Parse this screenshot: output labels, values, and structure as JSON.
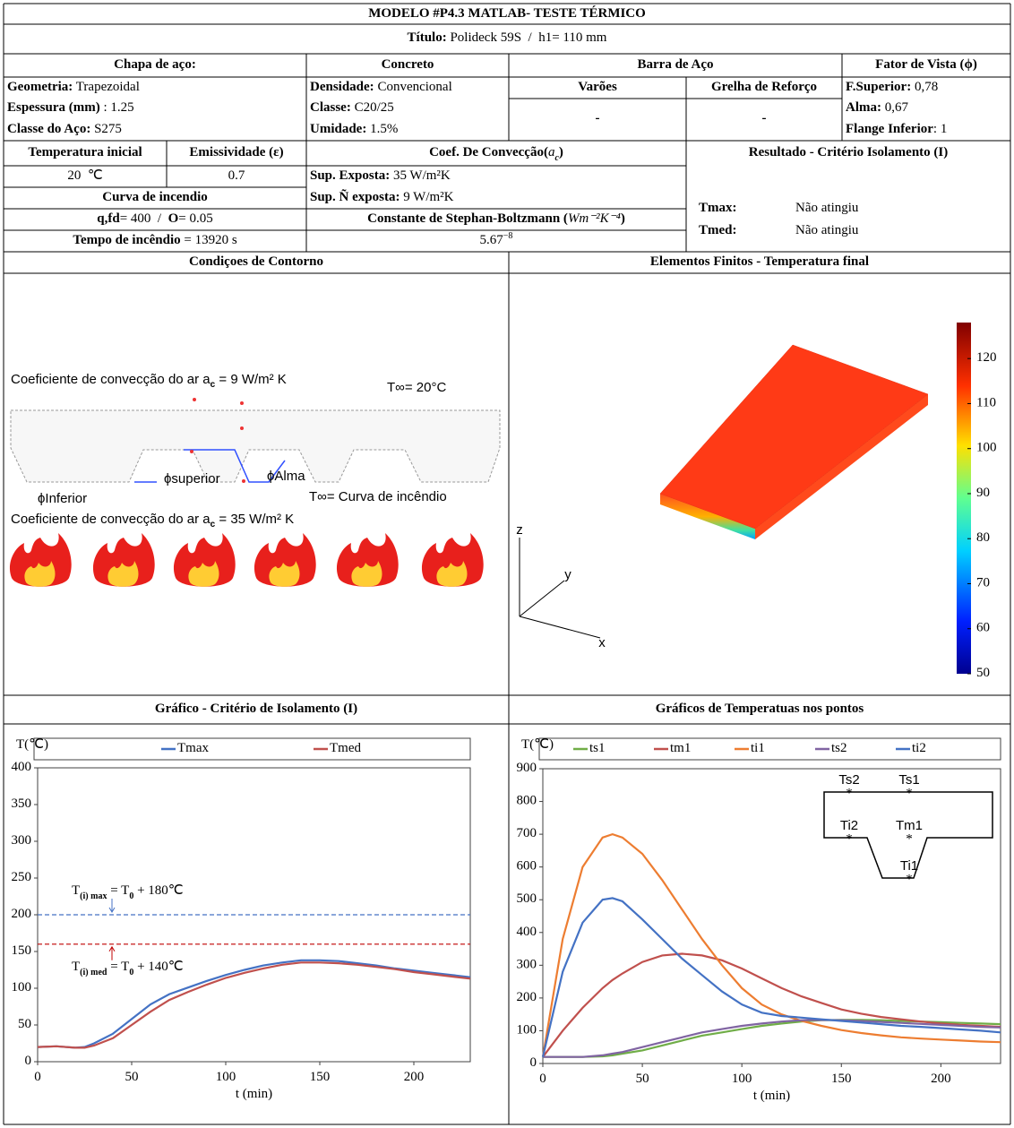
{
  "header": {
    "title": "MODELO #P4.3 MATLAB- TESTE TÉRMICO",
    "subtitle_label": "Título:",
    "subtitle": " Polideck 59S  /  h1= 110 mm"
  },
  "steel": {
    "heading": "Chapa de aço:",
    "rows": [
      {
        "label": "Geometria:",
        "value": " Trapezoidal"
      },
      {
        "label": "Espessura (mm)",
        "value": " : 1.25"
      },
      {
        "label": "Classe do Aço:",
        "value": " S275"
      }
    ]
  },
  "concrete": {
    "heading": "Concreto",
    "rows": [
      {
        "label": "Densidade:",
        "value": " Convencional"
      },
      {
        "label": "Classe:",
        "value": " C20/25"
      },
      {
        "label": "Umidade:",
        "value": " 1.5%"
      }
    ]
  },
  "rebar": {
    "heading": "Barra de Aço",
    "columns": [
      {
        "label": "Varões",
        "value": "-"
      },
      {
        "label": "Grelha de Reforço",
        "value": "-"
      }
    ]
  },
  "view_factor": {
    "heading": "Fator de Vista (ϕ)",
    "rows": [
      {
        "label": "F.Superior:",
        "value": " 0,78"
      },
      {
        "label": "Alma:",
        "value": " 0,67"
      },
      {
        "label": "Flange Inferior",
        "value": ": 1"
      }
    ]
  },
  "initial": {
    "temperature_label": "Temperatura inicial",
    "emissivity_label": "Emissividade (ε)",
    "temperature": "20  ℃",
    "emissivity": "0.7"
  },
  "fire": {
    "heading": "Curva de incendio",
    "q_label": "q,fd",
    "q_value": "= 400  /  ",
    "o_label": "O",
    "o_value": "= 0.05",
    "time_label": "Tempo de incêndio",
    "time_value": " = 13920 s"
  },
  "convection": {
    "heading": "Coef. De Convecção(",
    "symbol": "a",
    "symbol_sub": "c",
    "heading_end": ")",
    "rows": [
      {
        "label": "Sup. Exposta:",
        "value": " 35 W/m²K"
      },
      {
        "label": "Sup. Ñ exposta:",
        "value": " 9 W/m²K"
      }
    ],
    "constant_label": "Constante de Stephan-Boltzmann (",
    "constant_unit": "Wm⁻²K⁻⁴",
    "constant_end": ")",
    "constant_value": "5.67",
    "constant_exp": "−8"
  },
  "result": {
    "heading": "Resultado - Critério Isolamento (I)",
    "rows": [
      {
        "label": "Tmax:",
        "value": "Não atingiu"
      },
      {
        "label": "Tmed:",
        "value": "Não atingiu"
      }
    ]
  },
  "sections": {
    "boundary": "Condiçoes de Contorno",
    "fe": "Elementos Finitos - Temperatura final",
    "insulation": "Gráfico - Critério de Isolamento (I)",
    "points": "Gráficos de Temperatuas nos pontos"
  },
  "boundary_diagram": {
    "top_convection": [
      "Coeficiente de convecção do ar a",
      "c",
      " = 9 W/m² K"
    ],
    "top_temperature": "T∞= 20°C",
    "superior": "ϕsuperior",
    "alma": "ϕAlma",
    "inferior": "ϕInferior",
    "bottom_temperature": "T∞= Curva de incêndio",
    "bottom_convection": [
      "Coeficiente de convecção do ar a",
      "c",
      " = 35 W/m² K"
    ]
  },
  "fe_plot": {
    "axes": [
      "x",
      "y",
      "z"
    ],
    "colorbar": {
      "lim": [
        50,
        128
      ],
      "ticks": [
        50,
        60,
        70,
        80,
        90,
        100,
        110,
        120
      ]
    }
  },
  "chart_data": [
    {
      "type": "line",
      "y_label": "T(℃)",
      "x_label": "t (min)",
      "xlim": [
        0,
        230
      ],
      "xticks": [
        0,
        50,
        100,
        150,
        200
      ],
      "ylim": [
        0,
        400
      ],
      "yticks": [
        0,
        50,
        100,
        150,
        200,
        250,
        300,
        350,
        400
      ],
      "x": [
        0,
        10,
        20,
        25,
        30,
        40,
        50,
        60,
        70,
        80,
        90,
        100,
        110,
        120,
        130,
        140,
        150,
        160,
        170,
        180,
        190,
        200,
        210,
        220,
        230
      ],
      "series": [
        {
          "name": "Tmax",
          "color": "#4472c4",
          "values": [
            20,
            21,
            19,
            20,
            25,
            38,
            58,
            78,
            92,
            101,
            110,
            118,
            125,
            131,
            135,
            138,
            138,
            137,
            134,
            131,
            127,
            124,
            121,
            118,
            115
          ]
        },
        {
          "name": "Tmed",
          "color": "#c0504d",
          "values": [
            20,
            21,
            19,
            19,
            22,
            32,
            50,
            68,
            84,
            95,
            105,
            114,
            121,
            127,
            132,
            135,
            135,
            134,
            132,
            129,
            126,
            122,
            119,
            116,
            113
          ]
        }
      ],
      "reference_lines": [
        {
          "value": 200,
          "color": "#4472c4",
          "label": [
            "T",
            "(i) max",
            " = T",
            "0",
            " + 180℃"
          ]
        },
        {
          "value": 160,
          "color": "#c00000",
          "label": [
            "T",
            "(i) med",
            " = T",
            "0",
            " + 140℃"
          ]
        }
      ]
    },
    {
      "type": "line",
      "y_label": "T(℃)",
      "x_label": "t (min)",
      "xlim": [
        0,
        230
      ],
      "xticks": [
        0,
        50,
        100,
        150,
        200
      ],
      "ylim": [
        0,
        900
      ],
      "yticks": [
        0,
        100,
        200,
        300,
        400,
        500,
        600,
        700,
        800,
        900
      ],
      "x": [
        0,
        5,
        10,
        20,
        30,
        35,
        40,
        50,
        60,
        70,
        80,
        90,
        100,
        110,
        120,
        130,
        140,
        150,
        160,
        170,
        180,
        190,
        200,
        210,
        220,
        230
      ],
      "series": [
        {
          "name": "ts1",
          "color": "#70ad47",
          "values": [
            20,
            20,
            20,
            20,
            22,
            25,
            30,
            40,
            55,
            70,
            85,
            95,
            105,
            115,
            122,
            128,
            132,
            133,
            133,
            132,
            130,
            128,
            126,
            124,
            122,
            120
          ]
        },
        {
          "name": "tm1",
          "color": "#c0504d",
          "values": [
            20,
            60,
            100,
            170,
            230,
            255,
            275,
            310,
            330,
            335,
            330,
            315,
            290,
            260,
            230,
            205,
            185,
            165,
            152,
            142,
            135,
            128,
            122,
            118,
            115,
            112
          ]
        },
        {
          "name": "ti1",
          "color": "#ed7d31",
          "values": [
            20,
            200,
            380,
            600,
            690,
            700,
            690,
            640,
            560,
            470,
            380,
            300,
            230,
            180,
            150,
            130,
            115,
            102,
            93,
            86,
            80,
            76,
            73,
            70,
            67,
            65
          ]
        },
        {
          "name": "ts2",
          "color": "#8064a2",
          "values": [
            20,
            20,
            20,
            20,
            25,
            30,
            35,
            50,
            65,
            80,
            95,
            105,
            115,
            122,
            128,
            132,
            133,
            132,
            130,
            127,
            124,
            121,
            118,
            115,
            112,
            110
          ]
        },
        {
          "name": "ti2",
          "color": "#4472c4",
          "values": [
            20,
            150,
            280,
            430,
            500,
            505,
            495,
            440,
            380,
            320,
            270,
            220,
            180,
            155,
            145,
            140,
            135,
            130,
            125,
            120,
            115,
            112,
            108,
            104,
            100,
            95
          ]
        }
      ],
      "inset_labels": [
        "Ts2",
        "Ts1",
        "Ti2",
        "Tm1",
        "Ti1"
      ]
    }
  ]
}
